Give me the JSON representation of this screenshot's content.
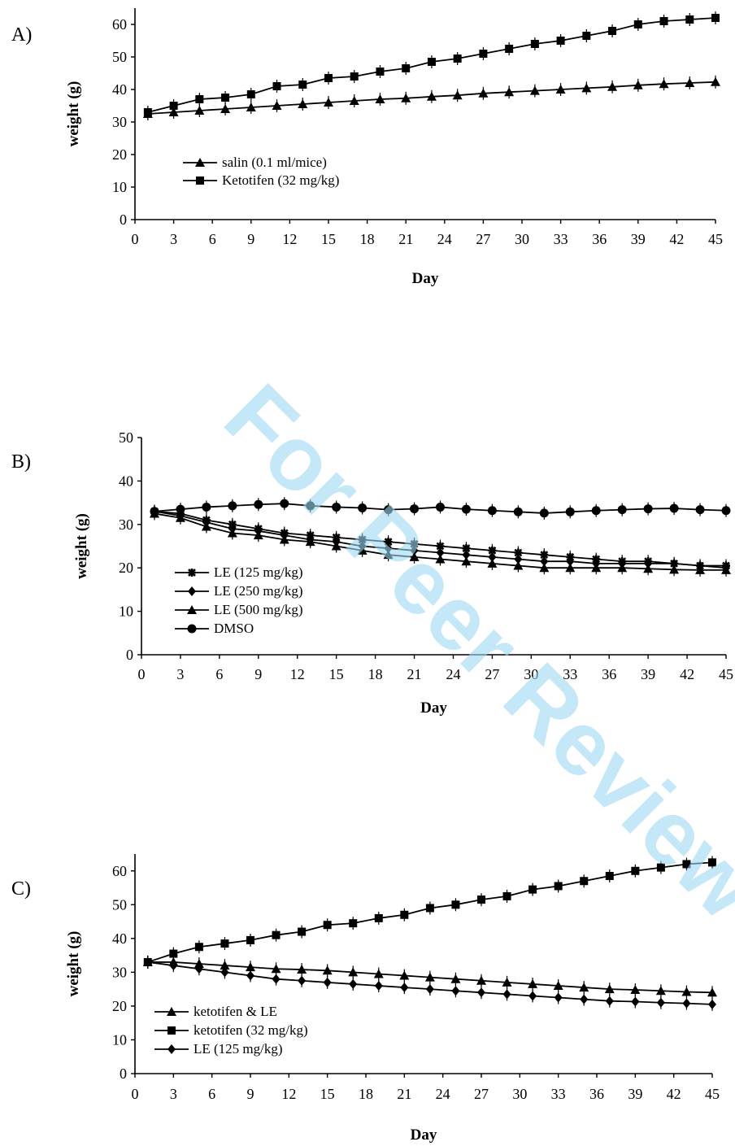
{
  "watermark": "For Peer Review",
  "chart_data": [
    {
      "panel": "A)",
      "type": "line",
      "xlabel": "Day",
      "ylabel": "weight (g)",
      "xlim": [
        0,
        45
      ],
      "ylim": [
        0,
        65
      ],
      "xticks": [
        0,
        3,
        6,
        9,
        12,
        15,
        18,
        21,
        24,
        27,
        30,
        33,
        36,
        39,
        42,
        45
      ],
      "yticks": [
        0,
        10,
        20,
        30,
        40,
        50,
        60
      ],
      "grid": false,
      "legend_position": "lower-left",
      "series": [
        {
          "name": "salin (0.1 ml/mice)",
          "marker": "triangle",
          "x": [
            1,
            3,
            5,
            7,
            9,
            11,
            13,
            15,
            17,
            19,
            21,
            23,
            25,
            27,
            29,
            31,
            33,
            35,
            37,
            39,
            41,
            43,
            45
          ],
          "y": [
            32.5,
            33,
            33.5,
            34,
            34.5,
            35,
            35.5,
            36,
            36.5,
            37,
            37.3,
            37.8,
            38.2,
            38.8,
            39.2,
            39.6,
            40,
            40.4,
            40.8,
            41.3,
            41.7,
            42,
            42.3
          ]
        },
        {
          "name": "Ketotifen (32 mg/kg)",
          "marker": "square",
          "x": [
            1,
            3,
            5,
            7,
            9,
            11,
            13,
            15,
            17,
            19,
            21,
            23,
            25,
            27,
            29,
            31,
            33,
            35,
            37,
            39,
            41,
            43,
            45
          ],
          "y": [
            33,
            35,
            37,
            37.5,
            38.5,
            41,
            41.5,
            43.5,
            44,
            45.5,
            46.5,
            48.5,
            49.5,
            51,
            52.5,
            54,
            55,
            56.5,
            58,
            60,
            61,
            61.5,
            62
          ]
        }
      ]
    },
    {
      "panel": "B)",
      "type": "line",
      "xlabel": "Day",
      "ylabel": "weight (g)",
      "xlim": [
        0,
        45
      ],
      "ylim": [
        0,
        50
      ],
      "xticks": [
        0,
        3,
        6,
        9,
        12,
        15,
        18,
        21,
        24,
        27,
        30,
        33,
        36,
        39,
        42,
        45
      ],
      "yticks": [
        0,
        10,
        20,
        30,
        40,
        50
      ],
      "grid": false,
      "legend_position": "lower-left",
      "series": [
        {
          "name": "LE (125 mg/kg)",
          "marker": "asterisk",
          "x": [
            1,
            3,
            5,
            7,
            9,
            11,
            13,
            15,
            17,
            19,
            21,
            23,
            25,
            27,
            29,
            31,
            33,
            35,
            37,
            39,
            41,
            43,
            45
          ],
          "y": [
            33,
            32.5,
            31,
            30,
            29,
            28,
            27.5,
            27,
            26.5,
            26,
            25.5,
            25,
            24.5,
            24,
            23.5,
            23,
            22.5,
            22,
            21.5,
            21.5,
            21,
            20.5,
            20.5
          ]
        },
        {
          "name": "LE (250 mg/kg)",
          "marker": "diamond",
          "x": [
            1,
            3,
            5,
            7,
            9,
            11,
            13,
            15,
            17,
            19,
            21,
            23,
            25,
            27,
            29,
            31,
            33,
            35,
            37,
            39,
            41,
            43,
            45
          ],
          "y": [
            33,
            32,
            30.5,
            29,
            28.5,
            27.5,
            26.5,
            26,
            25,
            24.5,
            24,
            23.5,
            23,
            22.5,
            22,
            21.5,
            21.5,
            21,
            21,
            21,
            21,
            20.5,
            20
          ]
        },
        {
          "name": "LE (500 mg/kg)",
          "marker": "triangle",
          "x": [
            1,
            3,
            5,
            7,
            9,
            11,
            13,
            15,
            17,
            19,
            21,
            23,
            25,
            27,
            29,
            31,
            33,
            35,
            37,
            39,
            41,
            43,
            45
          ],
          "y": [
            32.5,
            31.5,
            29.5,
            28,
            27.5,
            26.5,
            26,
            25,
            24,
            23,
            22.5,
            22,
            21.5,
            21,
            20.5,
            20,
            20,
            20,
            20,
            19.8,
            19.6,
            19.5,
            19.5
          ]
        },
        {
          "name": "DMSO",
          "marker": "circle",
          "x": [
            1,
            3,
            5,
            7,
            9,
            11,
            13,
            15,
            17,
            19,
            21,
            23,
            25,
            27,
            29,
            31,
            33,
            35,
            37,
            39,
            41,
            43,
            45
          ],
          "y": [
            33,
            33.5,
            34,
            34.3,
            34.6,
            34.8,
            34.3,
            34,
            33.8,
            33.4,
            33.6,
            34,
            33.5,
            33.2,
            32.9,
            32.6,
            32.9,
            33.2,
            33.4,
            33.6,
            33.7,
            33.4,
            33.2
          ]
        }
      ]
    },
    {
      "panel": "C)",
      "type": "line",
      "xlabel": "Day",
      "ylabel": "weight (g)",
      "xlim": [
        0,
        45
      ],
      "ylim": [
        0,
        65
      ],
      "xticks": [
        0,
        3,
        6,
        9,
        12,
        15,
        18,
        21,
        24,
        27,
        30,
        33,
        36,
        39,
        42,
        45
      ],
      "yticks": [
        0,
        10,
        20,
        30,
        40,
        50,
        60
      ],
      "grid": false,
      "legend_position": "lower-left",
      "series": [
        {
          "name": "ketotifen & LE",
          "marker": "triangle",
          "x": [
            1,
            3,
            5,
            7,
            9,
            11,
            13,
            15,
            17,
            19,
            21,
            23,
            25,
            27,
            29,
            31,
            33,
            35,
            37,
            39,
            41,
            43,
            45
          ],
          "y": [
            33,
            33,
            32.5,
            32,
            31.5,
            31,
            30.8,
            30.5,
            30,
            29.5,
            29,
            28.5,
            28,
            27.5,
            27,
            26.5,
            26,
            25.5,
            25,
            24.8,
            24.5,
            24.2,
            24
          ]
        },
        {
          "name": "ketotifen (32 mg/kg)",
          "marker": "square",
          "x": [
            1,
            3,
            5,
            7,
            9,
            11,
            13,
            15,
            17,
            19,
            21,
            23,
            25,
            27,
            29,
            31,
            33,
            35,
            37,
            39,
            41,
            43,
            45
          ],
          "y": [
            33,
            35.5,
            37.5,
            38.5,
            39.5,
            41,
            42,
            44,
            44.5,
            46,
            47,
            49,
            50,
            51.5,
            52.5,
            54.5,
            55.5,
            57,
            58.5,
            60,
            61,
            62,
            62.5
          ]
        },
        {
          "name": "LE (125 mg/kg)",
          "marker": "diamond",
          "x": [
            1,
            3,
            5,
            7,
            9,
            11,
            13,
            15,
            17,
            19,
            21,
            23,
            25,
            27,
            29,
            31,
            33,
            35,
            37,
            39,
            41,
            43,
            45
          ],
          "y": [
            33,
            32,
            31,
            30,
            29,
            28,
            27.5,
            27,
            26.5,
            26,
            25.5,
            25,
            24.5,
            24,
            23.5,
            23,
            22.5,
            22,
            21.5,
            21.3,
            21,
            20.8,
            20.5
          ]
        }
      ]
    }
  ]
}
